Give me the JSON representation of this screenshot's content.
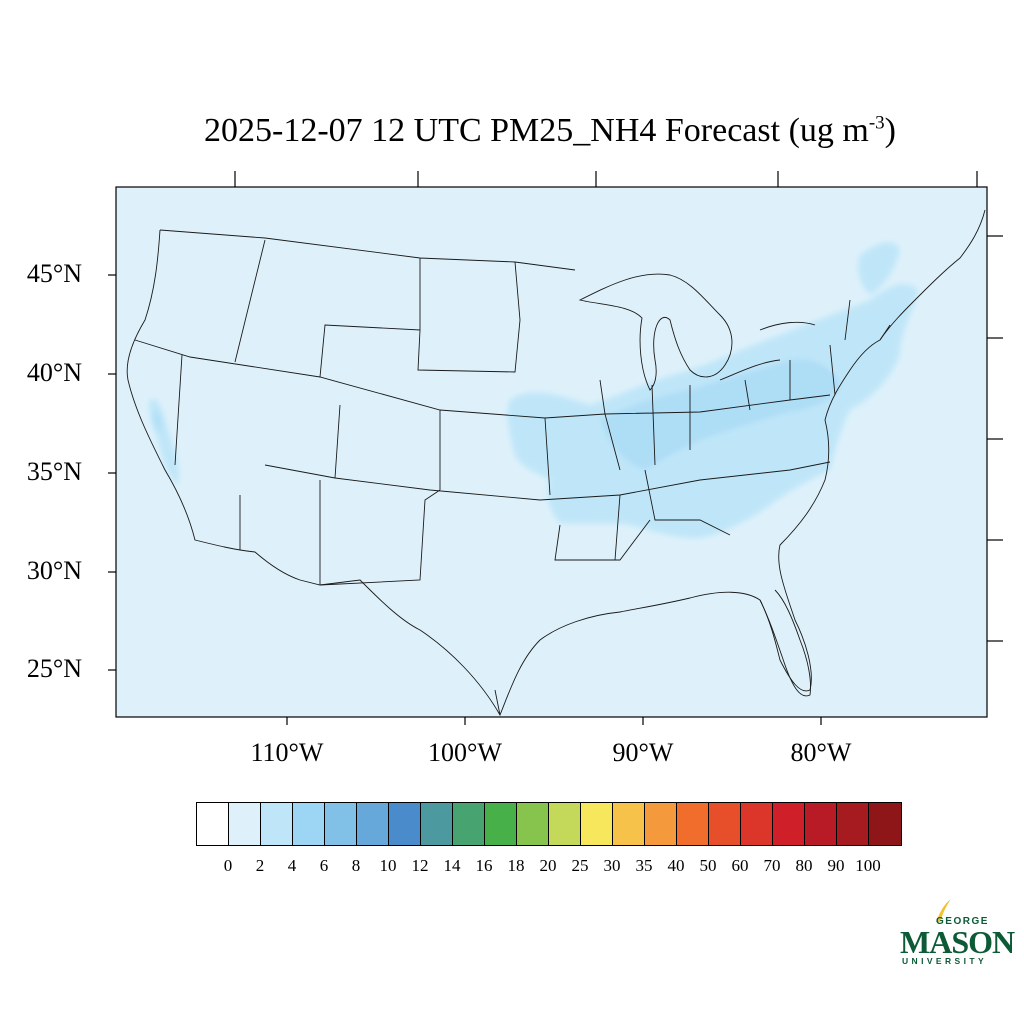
{
  "title": {
    "main": "2025-12-07 12 UTC PM25_NH4 Forecast (ug m",
    "sup": "-3",
    "close": ")"
  },
  "axes": {
    "lat_labels": [
      "45°N",
      "40°N",
      "35°N",
      "30°N",
      "25°N"
    ],
    "lon_labels": [
      "110°W",
      "100°W",
      "90°W",
      "80°W"
    ]
  },
  "legend": {
    "colors": [
      "#ffffff",
      "#def1fb",
      "#bfe6f8",
      "#9dd6f5",
      "#82c1e7",
      "#67a8db",
      "#4a8bcb",
      "#4c9a9f",
      "#47a370",
      "#48b048",
      "#87c44e",
      "#c4d85a",
      "#f7e75c",
      "#f7c24a",
      "#f49a3c",
      "#f16d2c",
      "#e74f2a",
      "#dc352a",
      "#cf1f29",
      "#b81b25",
      "#a51b1f",
      "#8e1619"
    ],
    "labels": [
      "0",
      "2",
      "4",
      "6",
      "8",
      "10",
      "12",
      "14",
      "16",
      "18",
      "20",
      "25",
      "30",
      "35",
      "40",
      "50",
      "60",
      "70",
      "80",
      "90",
      "100"
    ]
  },
  "logo": {
    "line1": "GEORGE",
    "line2": "MASON",
    "line3": "UNIVERSITY"
  }
}
